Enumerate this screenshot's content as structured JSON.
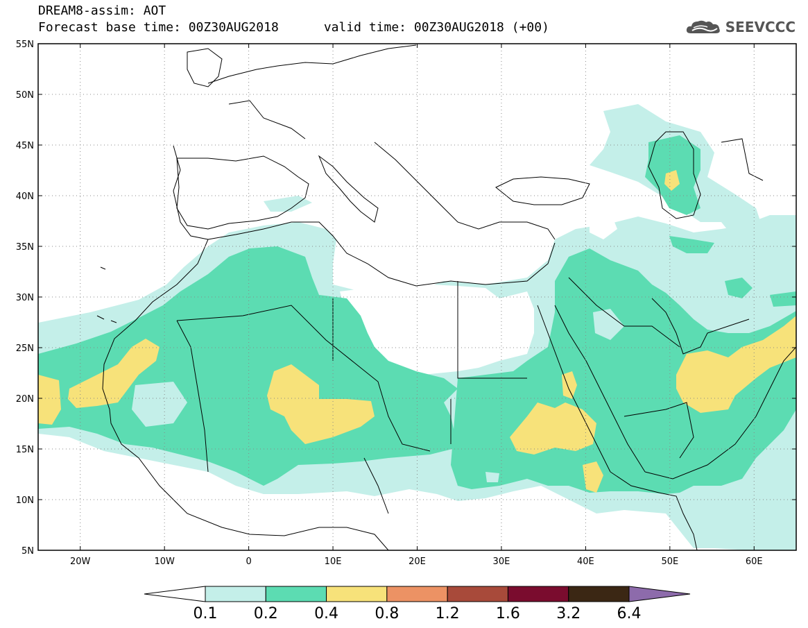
{
  "header": {
    "title": "DREAM8-assim: AOT",
    "base_time_label": "Forecast base time: 00Z30AUG2018",
    "valid_time_label": "valid time: 00Z30AUG2018 (+00)",
    "brand": "SEEVCCC",
    "brand_icon": "cloud-logo-icon"
  },
  "axes": {
    "lat_labels": [
      "55N",
      "50N",
      "45N",
      "40N",
      "35N",
      "30N",
      "25N",
      "20N",
      "15N",
      "10N",
      "5N"
    ],
    "lat_values": [
      55,
      50,
      45,
      40,
      35,
      30,
      25,
      20,
      15,
      10,
      5
    ],
    "lon_labels": [
      "20W",
      "10W",
      "0",
      "10E",
      "20E",
      "30E",
      "40E",
      "50E",
      "60E"
    ],
    "lon_values": [
      -20,
      -10,
      0,
      10,
      20,
      30,
      40,
      50,
      60
    ],
    "lon_range": [
      -25,
      65
    ],
    "lat_range": [
      5,
      55
    ],
    "grid": "dotted"
  },
  "colorbar": {
    "bounds": [
      "0.1",
      "0.2",
      "0.4",
      "0.8",
      "1.2",
      "1.6",
      "3.2",
      "6.4"
    ],
    "colors": [
      "#ffffff",
      "#c4efe9",
      "#5cdcb2",
      "#f7e27a",
      "#ec9264",
      "#a84a3a",
      "#7a0c2e",
      "#3b2714",
      "#8d6bab"
    ]
  },
  "fields": [
    {
      "level": "0.1-0.2",
      "color": "#c4efe9"
    },
    {
      "level": "0.2-0.4",
      "color": "#5cdcb2"
    },
    {
      "level": "0.4-0.8",
      "color": "#f7e27a"
    }
  ]
}
